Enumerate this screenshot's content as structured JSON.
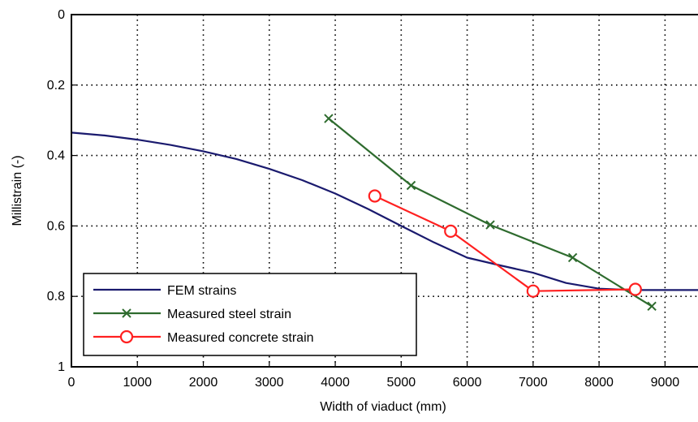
{
  "chart_data": {
    "type": "line",
    "title": "",
    "xlabel": "Width of viaduct (mm)",
    "ylabel": "Millistrain (-)",
    "xlim": [
      0,
      9500
    ],
    "ylim": [
      0,
      1
    ],
    "y_inverted": true,
    "grid": true,
    "grid_style": "dotted",
    "legend_position": "bottom-left",
    "x_ticks": [
      0,
      1000,
      2000,
      3000,
      4000,
      5000,
      6000,
      7000,
      8000,
      9000
    ],
    "x_tick_labels": [
      "0",
      "1000",
      "2000",
      "3000",
      "4000",
      "5000",
      "6000",
      "7000",
      "8000",
      "9000"
    ],
    "y_ticks": [
      0,
      0.2,
      0.4,
      0.6,
      0.8,
      1
    ],
    "y_tick_labels": [
      "0",
      "0.2",
      "0.4",
      "0.6",
      "0.8",
      "1"
    ],
    "series": [
      {
        "name": "FEM strains",
        "color": "#1a1a6e",
        "marker": "none",
        "x": [
          0,
          500,
          1000,
          1500,
          2000,
          2500,
          3000,
          3500,
          4000,
          4500,
          5000,
          5500,
          6000,
          6500,
          7000,
          7500,
          8000,
          8500,
          9000,
          9500
        ],
        "y": [
          0.335,
          0.343,
          0.355,
          0.37,
          0.388,
          0.41,
          0.438,
          0.47,
          0.508,
          0.552,
          0.6,
          0.647,
          0.69,
          0.712,
          0.733,
          0.762,
          0.778,
          0.782,
          0.782,
          0.782
        ]
      },
      {
        "name": "Measured steel strain",
        "color": "#2e6b2e",
        "marker": "x",
        "x": [
          3900,
          5150,
          6350,
          7600,
          8800
        ],
        "y": [
          0.295,
          0.485,
          0.597,
          0.69,
          0.828
        ]
      },
      {
        "name": "Measured concrete strain",
        "color": "#ff2020",
        "marker": "circle",
        "x": [
          4600,
          5750,
          7000,
          8550
        ],
        "y": [
          0.515,
          0.615,
          0.785,
          0.78
        ]
      }
    ]
  }
}
